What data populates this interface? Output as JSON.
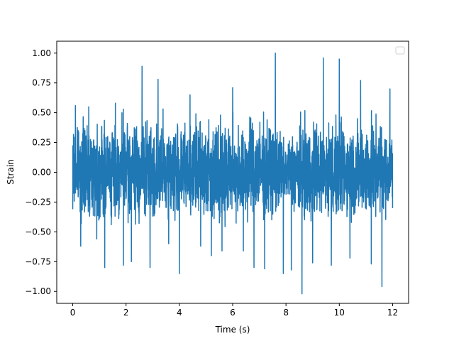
{
  "chart_data": {
    "type": "line",
    "title": "",
    "xlabel": "Time (s)",
    "ylabel": "Strain",
    "xlim": [
      -0.6,
      12.6
    ],
    "ylim": [
      -1.1,
      1.1
    ],
    "xticks": [
      0,
      2,
      4,
      6,
      8,
      10,
      12
    ],
    "xtick_labels": [
      "0",
      "2",
      "4",
      "6",
      "8",
      "10",
      "12"
    ],
    "yticks": [
      -1.0,
      -0.75,
      -0.5,
      -0.25,
      0.0,
      0.25,
      0.5,
      0.75,
      1.0
    ],
    "ytick_labels": [
      "−1.00",
      "−0.75",
      "−0.50",
      "−0.25",
      "0.00",
      "0.25",
      "0.50",
      "0.75",
      "1.00"
    ],
    "grid": false,
    "legend": {
      "placement": "upper right",
      "entries": []
    },
    "series": [
      {
        "color": "#1f77b4",
        "x": [
          0.0,
          0.1,
          0.3,
          0.6,
          0.9,
          1.2,
          1.6,
          1.9,
          2.2,
          2.6,
          2.9,
          3.2,
          3.6,
          4.0,
          4.4,
          4.8,
          5.2,
          5.6,
          6.0,
          6.4,
          6.8,
          7.2,
          7.6,
          7.9,
          8.2,
          8.6,
          9.0,
          9.4,
          9.7,
          10.0,
          10.4,
          10.8,
          11.2,
          11.6,
          11.9,
          12.0
        ],
        "y": [
          -0.31,
          0.56,
          -0.62,
          0.55,
          -0.56,
          -0.8,
          0.58,
          -0.78,
          -0.75,
          0.89,
          -0.8,
          0.78,
          -0.6,
          -0.85,
          0.65,
          -0.62,
          -0.7,
          -0.66,
          0.71,
          -0.66,
          -0.8,
          -0.81,
          1.0,
          -0.85,
          -0.82,
          -1.02,
          -0.76,
          0.96,
          -0.78,
          0.95,
          -0.72,
          0.77,
          -0.77,
          -0.96,
          0.7,
          -0.3
        ],
        "envelope": {
          "x": [
            0.0,
            0.5,
            1.0,
            1.5,
            2.0,
            2.5,
            3.0,
            3.5,
            4.0,
            4.5,
            5.0,
            5.5,
            6.0,
            6.5,
            7.0,
            7.5,
            8.0,
            8.5,
            9.0,
            9.5,
            10.0,
            10.5,
            11.0,
            11.5,
            12.0
          ],
          "upper": [
            0.42,
            0.5,
            0.52,
            0.5,
            0.5,
            0.52,
            0.5,
            0.52,
            0.5,
            0.52,
            0.5,
            0.52,
            0.5,
            0.52,
            0.5,
            0.52,
            0.3,
            0.52,
            0.5,
            0.52,
            0.5,
            0.52,
            0.5,
            0.52,
            0.42
          ],
          "lower": [
            -0.31,
            -0.45,
            -0.46,
            -0.45,
            -0.46,
            -0.45,
            -0.46,
            -0.45,
            -0.46,
            -0.45,
            -0.46,
            -0.45,
            -0.46,
            -0.45,
            -0.46,
            -0.45,
            -0.3,
            -0.45,
            -0.46,
            -0.45,
            -0.46,
            -0.45,
            -0.46,
            -0.45,
            -0.31
          ]
        }
      }
    ]
  }
}
